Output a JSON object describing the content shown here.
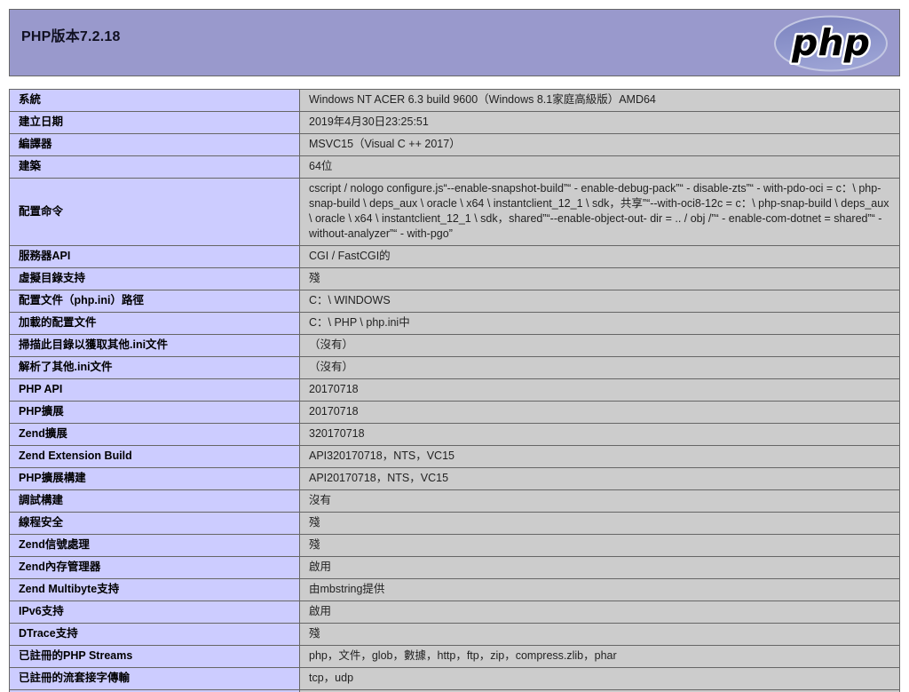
{
  "header": {
    "title": "PHP版本7.2.18",
    "logo_text": "php"
  },
  "colors": {
    "header_bg": "#9999cc",
    "label_cell_bg": "#ccccff",
    "value_cell_bg": "#cccccc",
    "border": "#666666",
    "logo_ellipse": "#8289c2"
  },
  "table": {
    "rows": [
      {
        "label": "系統",
        "value": "Windows NT ACER 6.3 build 9600（Windows 8.1家庭高級版）AMD64"
      },
      {
        "label": "建立日期",
        "value": "2019年4月30日23:25:51"
      },
      {
        "label": "編譯器",
        "value": "MSVC15（Visual C ++ 2017）"
      },
      {
        "label": "建築",
        "value": "64位"
      },
      {
        "label": "配置命令",
        "value": "cscript / nologo configure.js“--enable-snapshot-build”“ - enable-debug-pack”“ - disable-zts”“ - with-pdo-oci = c：\\ php-snap-build \\ deps_aux \\ oracle \\ x64 \\ instantclient_12_1 \\ sdk，共享”“--with-oci8-12c = c：\\ php-snap-build \\ deps_aux \\ oracle \\ x64 \\ instantclient_12_1 \\ sdk，shared”“--enable-object-out- dir = .. / obj /”“ - enable-com-dotnet = shared”“ - without-analyzer”“ - with-pgo”"
      },
      {
        "label": "服務器API",
        "value": "CGI / FastCGI的"
      },
      {
        "label": "虛擬目錄支持",
        "value": "殘"
      },
      {
        "label": "配置文件（php.ini）路徑",
        "value": "C：\\ WINDOWS"
      },
      {
        "label": "加載的配置文件",
        "value": "C：\\ PHP \\ php.ini中"
      },
      {
        "label": "掃描此目錄以獲取其他.ini文件",
        "value": "（沒有）"
      },
      {
        "label": "解析了其他.ini文件",
        "value": "（沒有）"
      },
      {
        "label": "PHP API",
        "value": "20170718"
      },
      {
        "label": "PHP擴展",
        "value": "20170718"
      },
      {
        "label": "Zend擴展",
        "value": "320170718"
      },
      {
        "label": "Zend Extension Build",
        "value": "API320170718，NTS，VC15"
      },
      {
        "label": "PHP擴展構建",
        "value": "API20170718，NTS，VC15"
      },
      {
        "label": "調試構建",
        "value": "沒有"
      },
      {
        "label": "線程安全",
        "value": "殘"
      },
      {
        "label": "Zend信號處理",
        "value": "殘"
      },
      {
        "label": "Zend內存管理器",
        "value": "啟用"
      },
      {
        "label": "Zend Multibyte支持",
        "value": "由mbstring提供"
      },
      {
        "label": "IPv6支持",
        "value": "啟用"
      },
      {
        "label": "DTrace支持",
        "value": "殘"
      },
      {
        "label": "已註冊的PHP Streams",
        "value": "php，文件，glob，數據，http，ftp，zip，compress.zlib，phar"
      },
      {
        "label": "已註冊的流套接字傳輸",
        "value": "tcp，udp"
      },
      {
        "label": "",
        "value": "",
        "partial": true
      }
    ]
  }
}
